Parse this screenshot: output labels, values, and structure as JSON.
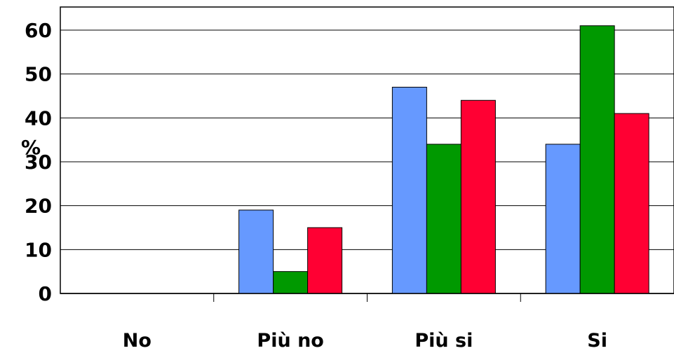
{
  "chart_data": {
    "type": "bar",
    "categories": [
      "No",
      "Più no",
      "Più si",
      "Si"
    ],
    "series": [
      {
        "color": "#6699ff",
        "values": [
          0,
          19,
          47,
          34
        ]
      },
      {
        "color": "#009900",
        "values": [
          0,
          5,
          34,
          61
        ]
      },
      {
        "color": "#ff0033",
        "values": [
          0,
          15,
          44,
          41
        ]
      }
    ],
    "ylabel": "%",
    "ylim": [
      0,
      60
    ],
    "yticks": [
      0,
      10,
      20,
      30,
      40,
      50,
      60
    ],
    "grid": true,
    "legend": "none"
  }
}
